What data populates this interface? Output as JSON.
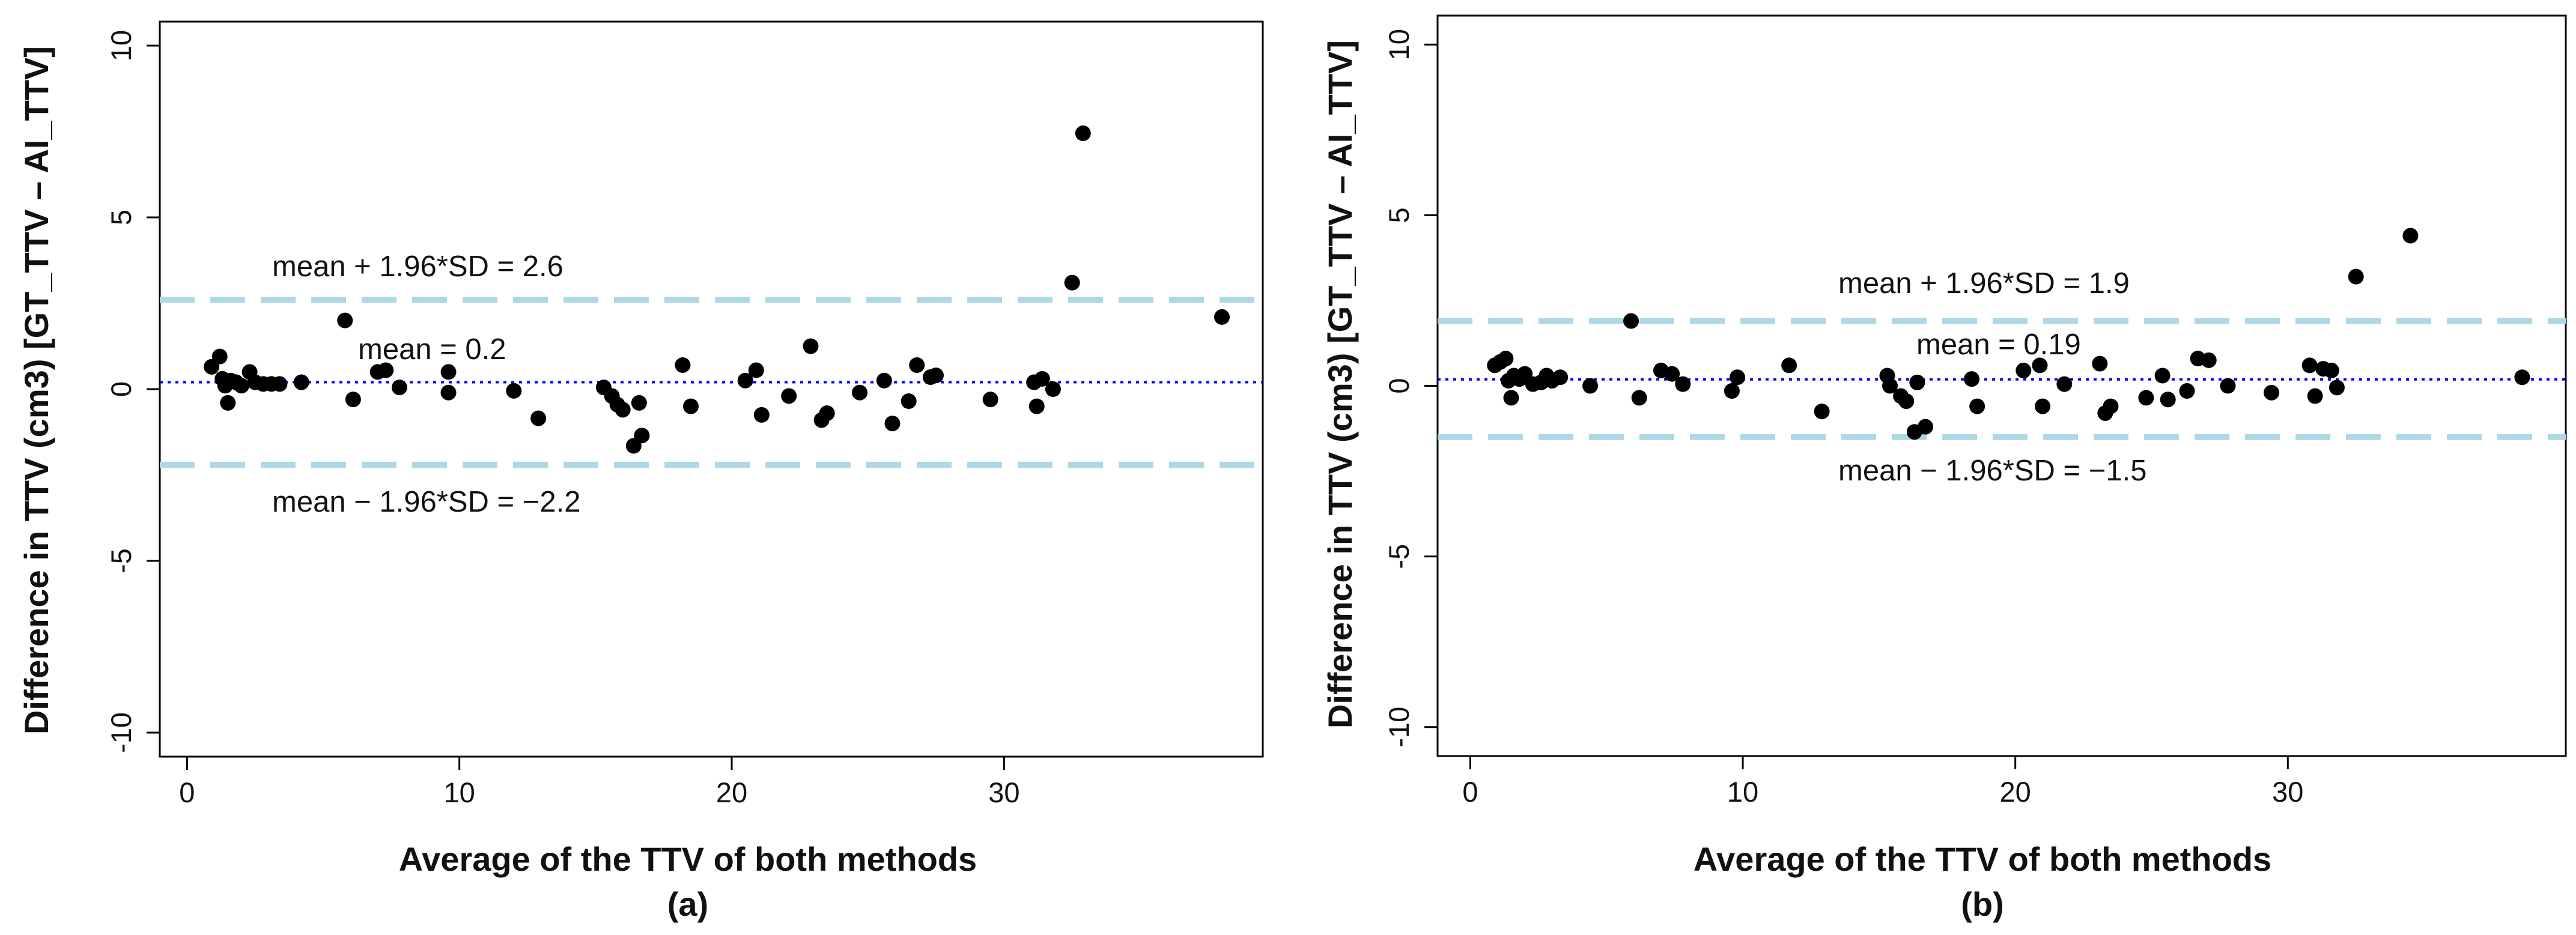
{
  "colors": {
    "points": "#000000",
    "loa_line": "#add8e6",
    "mean_line": "#0000ff",
    "frame": "#000000"
  },
  "chart_data": [
    {
      "type": "scatter",
      "panel_label": "(a)",
      "xlabel": "Average of the TTV of both methods",
      "ylabel": "Difference in TTV (cm3) [GT_TTV – AI_TTV]",
      "xlim": [
        -1,
        39.5
      ],
      "ylim": [
        -10.7,
        10.7
      ],
      "xticks": [
        0,
        10,
        20,
        30
      ],
      "yticks": [
        -10,
        -5,
        0,
        5,
        10
      ],
      "grid": false,
      "reference_lines": {
        "upper": {
          "value": 2.6,
          "label": "mean + 1.96*SD =  2.6"
        },
        "mean": {
          "value": 0.2,
          "label": "mean =  0.2"
        },
        "lower": {
          "value": -2.2,
          "label": "mean − 1.96*SD = −2.2"
        }
      },
      "points": [
        {
          "x": 0.9,
          "y": 0.65
        },
        {
          "x": 1.2,
          "y": 0.95
        },
        {
          "x": 1.3,
          "y": 0.3
        },
        {
          "x": 1.4,
          "y": 0.1
        },
        {
          "x": 1.5,
          "y": -0.4
        },
        {
          "x": 1.6,
          "y": 0.25
        },
        {
          "x": 1.8,
          "y": 0.2
        },
        {
          "x": 2.0,
          "y": 0.1
        },
        {
          "x": 2.3,
          "y": 0.5
        },
        {
          "x": 2.5,
          "y": 0.2
        },
        {
          "x": 2.8,
          "y": 0.15
        },
        {
          "x": 3.1,
          "y": 0.15
        },
        {
          "x": 3.4,
          "y": 0.15
        },
        {
          "x": 4.2,
          "y": 0.2
        },
        {
          "x": 5.8,
          "y": 2.0
        },
        {
          "x": 6.1,
          "y": -0.3
        },
        {
          "x": 7.0,
          "y": 0.5
        },
        {
          "x": 7.3,
          "y": 0.55
        },
        {
          "x": 7.8,
          "y": 0.05
        },
        {
          "x": 9.6,
          "y": 0.5
        },
        {
          "x": 9.6,
          "y": -0.1
        },
        {
          "x": 12.0,
          "y": -0.05
        },
        {
          "x": 12.9,
          "y": -0.85
        },
        {
          "x": 15.3,
          "y": 0.05
        },
        {
          "x": 15.6,
          "y": -0.2
        },
        {
          "x": 15.8,
          "y": -0.45
        },
        {
          "x": 16.0,
          "y": -0.6
        },
        {
          "x": 16.4,
          "y": -1.65
        },
        {
          "x": 16.6,
          "y": -0.4
        },
        {
          "x": 16.7,
          "y": -1.35
        },
        {
          "x": 18.2,
          "y": 0.7
        },
        {
          "x": 18.5,
          "y": -0.5
        },
        {
          "x": 20.5,
          "y": 0.25
        },
        {
          "x": 20.9,
          "y": 0.55
        },
        {
          "x": 21.1,
          "y": -0.75
        },
        {
          "x": 22.1,
          "y": -0.2
        },
        {
          "x": 22.9,
          "y": 1.25
        },
        {
          "x": 23.3,
          "y": -0.9
        },
        {
          "x": 23.5,
          "y": -0.7
        },
        {
          "x": 24.7,
          "y": -0.1
        },
        {
          "x": 25.6,
          "y": 0.25
        },
        {
          "x": 25.9,
          "y": -1.0
        },
        {
          "x": 26.5,
          "y": -0.35
        },
        {
          "x": 26.8,
          "y": 0.7
        },
        {
          "x": 27.3,
          "y": 0.35
        },
        {
          "x": 27.5,
          "y": 0.4
        },
        {
          "x": 29.5,
          "y": -0.3
        },
        {
          "x": 31.1,
          "y": 0.2
        },
        {
          "x": 31.2,
          "y": -0.5
        },
        {
          "x": 31.4,
          "y": 0.3
        },
        {
          "x": 31.8,
          "y": 0.0
        },
        {
          "x": 32.5,
          "y": 3.1
        },
        {
          "x": 32.9,
          "y": 7.45
        },
        {
          "x": 38.0,
          "y": 2.1
        }
      ]
    },
    {
      "type": "scatter",
      "panel_label": "(b)",
      "xlabel": "Average of the TTV of both methods",
      "ylabel": "Difference in TTV (cm3) [GT_TTV – AI_TTV]",
      "xlim": [
        -1.2,
        40.2
      ],
      "ylim": [
        -10.85,
        10.85
      ],
      "xticks": [
        0,
        10,
        20,
        30
      ],
      "yticks": [
        -10,
        -5,
        0,
        5,
        10
      ],
      "grid": false,
      "reference_lines": {
        "upper": {
          "value": 1.9,
          "label": "mean + 1.96*SD =  1.9"
        },
        "mean": {
          "value": 0.19,
          "label": "mean =  0.19"
        },
        "lower": {
          "value": -1.5,
          "label": "mean − 1.96*SD = −1.5"
        }
      },
      "points": [
        {
          "x": 0.9,
          "y": 0.6
        },
        {
          "x": 1.1,
          "y": 0.7
        },
        {
          "x": 1.3,
          "y": 0.8
        },
        {
          "x": 1.4,
          "y": 0.15
        },
        {
          "x": 1.5,
          "y": -0.35
        },
        {
          "x": 1.6,
          "y": 0.3
        },
        {
          "x": 1.8,
          "y": 0.2
        },
        {
          "x": 2.0,
          "y": 0.35
        },
        {
          "x": 2.3,
          "y": 0.05
        },
        {
          "x": 2.6,
          "y": 0.1
        },
        {
          "x": 2.8,
          "y": 0.3
        },
        {
          "x": 3.0,
          "y": 0.15
        },
        {
          "x": 3.3,
          "y": 0.25
        },
        {
          "x": 4.4,
          "y": 0.0
        },
        {
          "x": 5.9,
          "y": 1.9
        },
        {
          "x": 6.2,
          "y": -0.35
        },
        {
          "x": 7.0,
          "y": 0.45
        },
        {
          "x": 7.4,
          "y": 0.35
        },
        {
          "x": 7.8,
          "y": 0.05
        },
        {
          "x": 9.6,
          "y": -0.15
        },
        {
          "x": 9.8,
          "y": 0.25
        },
        {
          "x": 11.7,
          "y": 0.6
        },
        {
          "x": 12.9,
          "y": -0.75
        },
        {
          "x": 15.3,
          "y": 0.3
        },
        {
          "x": 15.4,
          "y": 0.0
        },
        {
          "x": 15.8,
          "y": -0.3
        },
        {
          "x": 16.0,
          "y": -0.45
        },
        {
          "x": 16.3,
          "y": -1.35
        },
        {
          "x": 16.4,
          "y": 0.1
        },
        {
          "x": 16.7,
          "y": -1.2
        },
        {
          "x": 18.4,
          "y": 0.2
        },
        {
          "x": 18.6,
          "y": -0.6
        },
        {
          "x": 20.3,
          "y": 0.45
        },
        {
          "x": 20.9,
          "y": 0.6
        },
        {
          "x": 21.0,
          "y": -0.6
        },
        {
          "x": 21.8,
          "y": 0.05
        },
        {
          "x": 23.1,
          "y": 0.65
        },
        {
          "x": 23.3,
          "y": -0.8
        },
        {
          "x": 23.5,
          "y": -0.6
        },
        {
          "x": 24.8,
          "y": -0.35
        },
        {
          "x": 25.4,
          "y": 0.3
        },
        {
          "x": 25.6,
          "y": -0.4
        },
        {
          "x": 26.3,
          "y": -0.15
        },
        {
          "x": 26.7,
          "y": 0.8
        },
        {
          "x": 27.1,
          "y": 0.75
        },
        {
          "x": 27.8,
          "y": 0.0
        },
        {
          "x": 29.4,
          "y": -0.2
        },
        {
          "x": 30.8,
          "y": 0.6
        },
        {
          "x": 31.0,
          "y": -0.3
        },
        {
          "x": 31.3,
          "y": 0.5
        },
        {
          "x": 31.6,
          "y": 0.45
        },
        {
          "x": 31.8,
          "y": -0.05
        },
        {
          "x": 32.5,
          "y": 3.2
        },
        {
          "x": 34.5,
          "y": 4.4
        },
        {
          "x": 38.6,
          "y": 0.25
        }
      ]
    }
  ]
}
